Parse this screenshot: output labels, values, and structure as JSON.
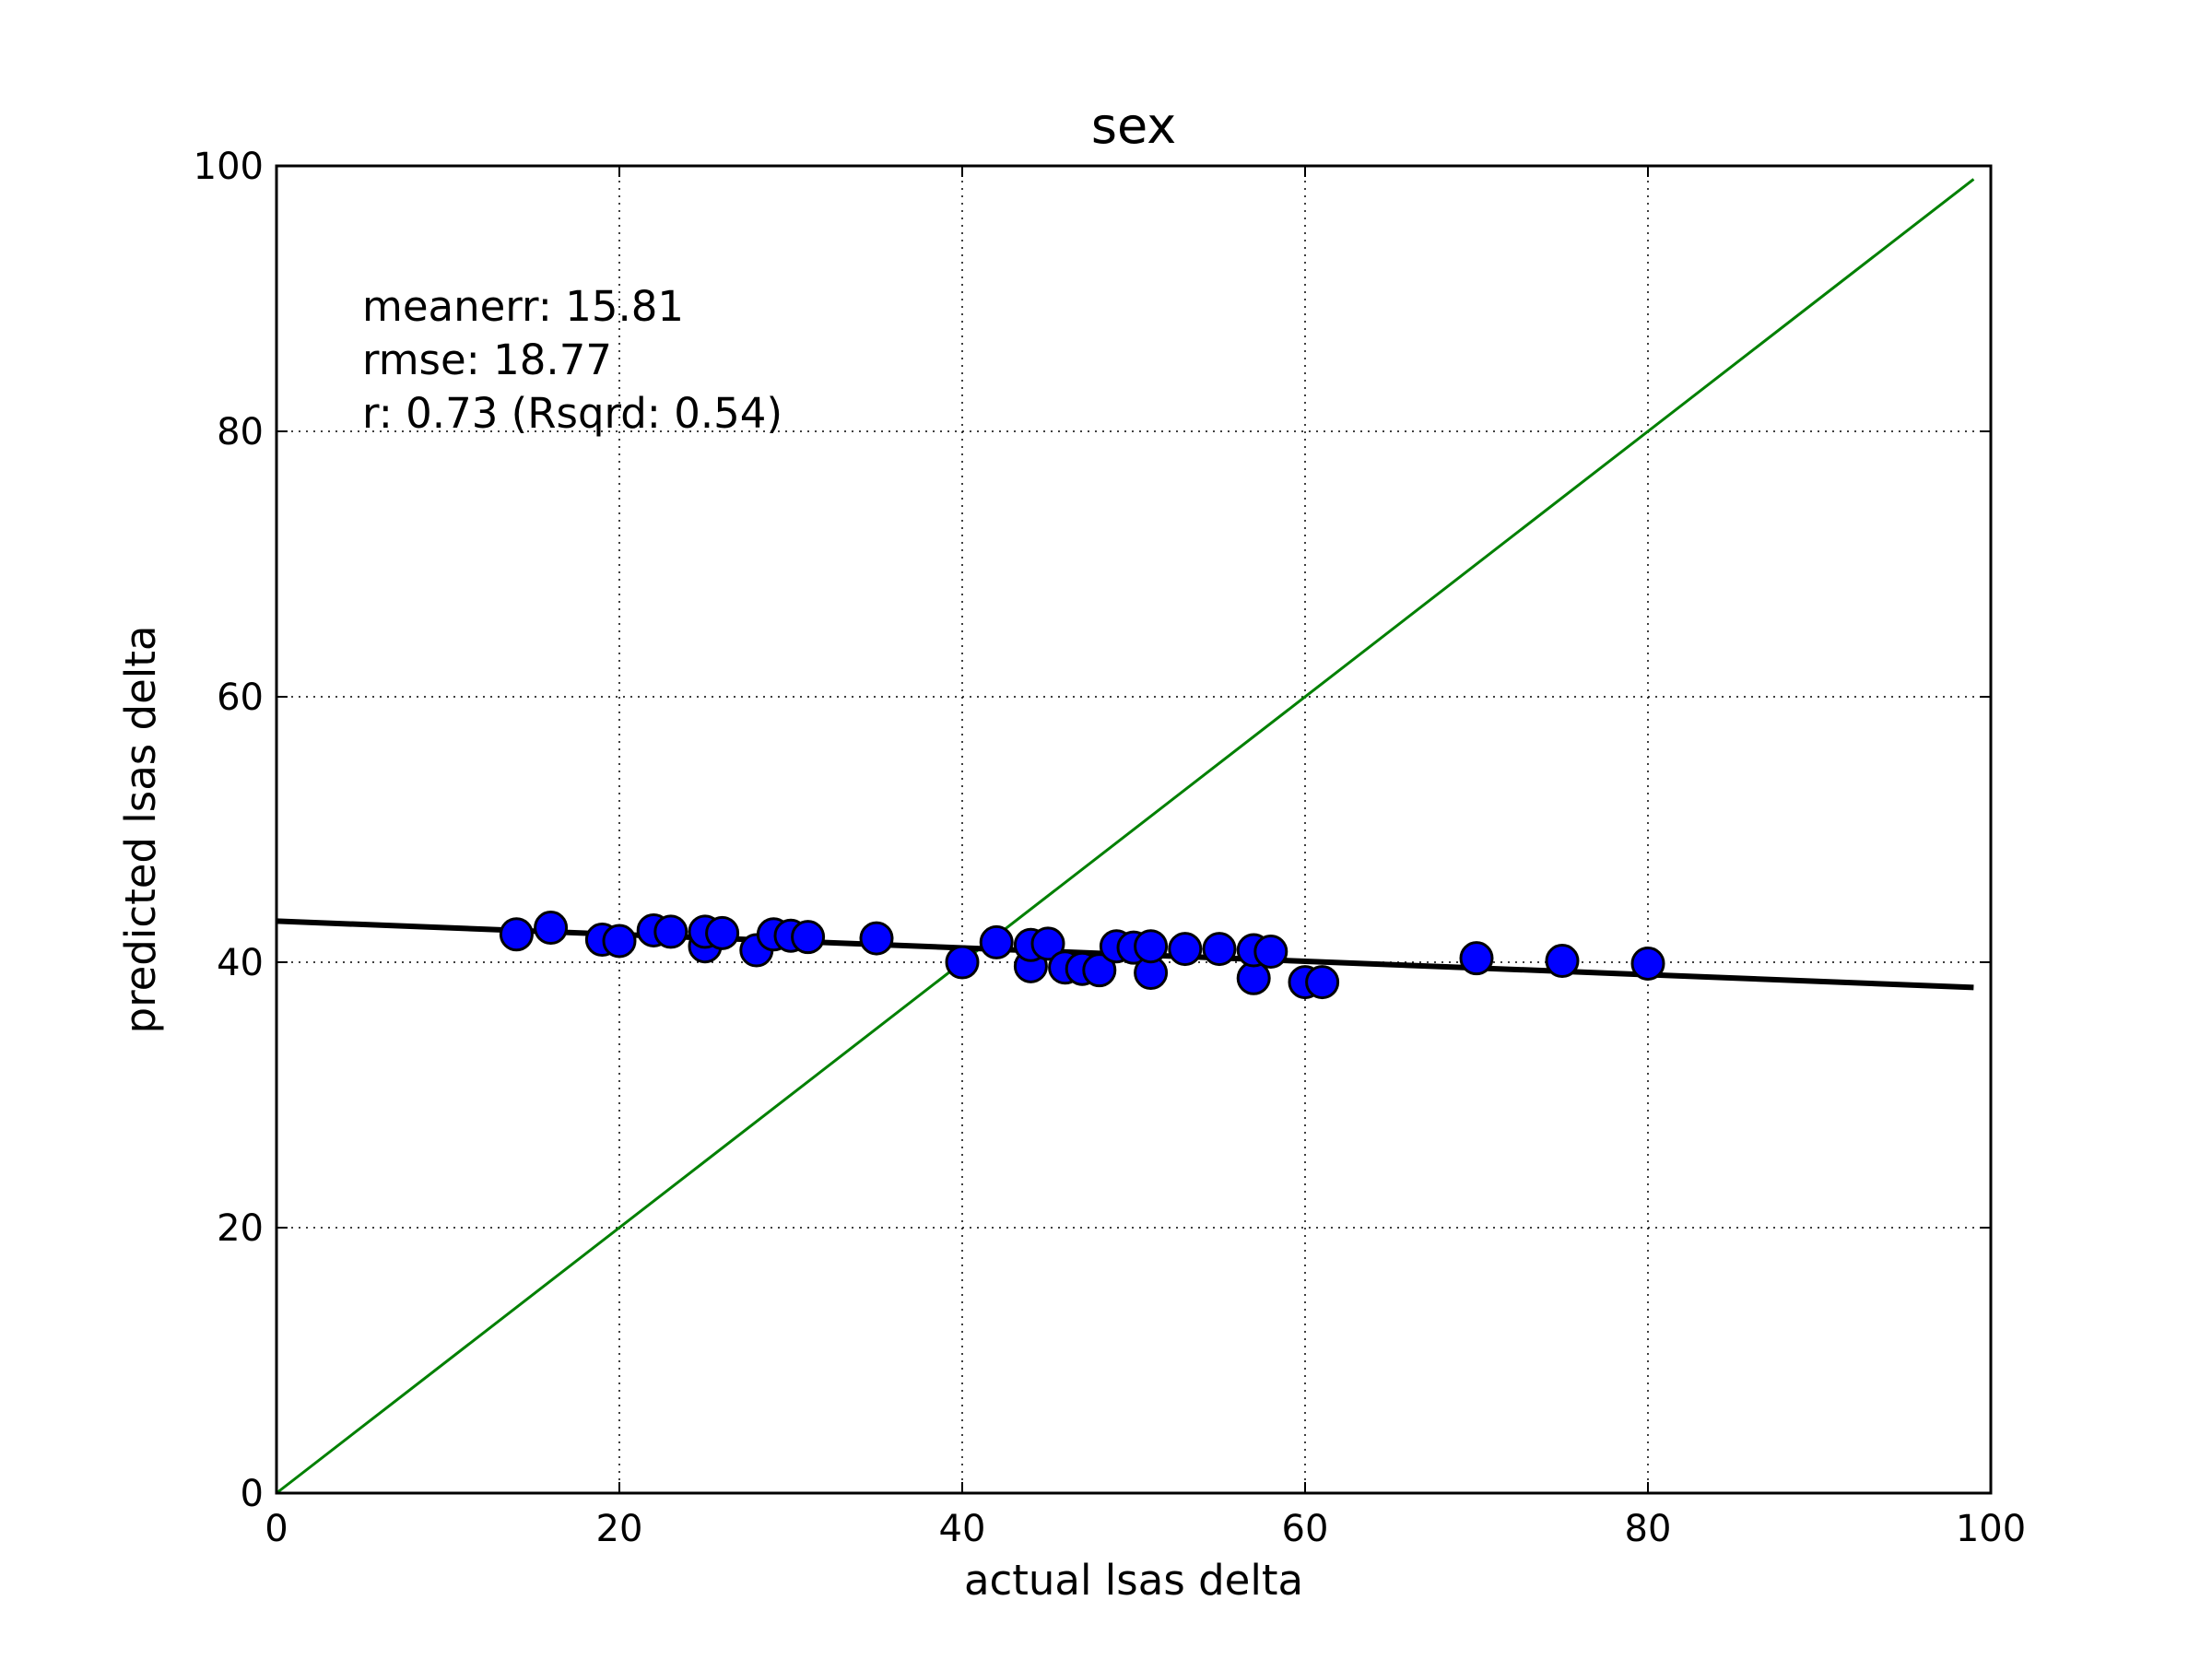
{
  "chart_data": {
    "type": "scatter",
    "title": "sex",
    "xlabel": "actual lsas delta",
    "ylabel": "predicted lsas delta",
    "xlim": [
      0,
      100
    ],
    "ylim": [
      0,
      100
    ],
    "xticks": [
      0,
      20,
      40,
      60,
      80,
      100
    ],
    "yticks": [
      0,
      20,
      40,
      60,
      80,
      100
    ],
    "grid": true,
    "annotations": [
      "meanerr: 15.81",
      "rmse: 18.77",
      "r: 0.73 (Rsqrd: 0.54)"
    ],
    "points": {
      "color": "#0000ff",
      "x": [
        14,
        16,
        19,
        20,
        22,
        23,
        25,
        25,
        26,
        28,
        29,
        30,
        31,
        35,
        40,
        42,
        44,
        44,
        45,
        46,
        47,
        48,
        49,
        50,
        51,
        51,
        53,
        55,
        57,
        57,
        58,
        60,
        61,
        70,
        75,
        80
      ],
      "y": [
        42.1,
        42.6,
        41.7,
        41.6,
        42.4,
        42.3,
        41.2,
        42.3,
        42.2,
        40.9,
        42.1,
        42.0,
        41.9,
        41.8,
        40.0,
        41.5,
        39.7,
        41.3,
        41.4,
        39.6,
        39.5,
        39.4,
        41.2,
        41.1,
        39.2,
        41.2,
        41.0,
        41.0,
        38.8,
        40.9,
        40.8,
        38.5,
        38.5,
        40.3,
        40.1,
        39.9
      ]
    },
    "fit_line": {
      "x": [
        0,
        99
      ],
      "y": [
        43.1,
        38.1
      ],
      "color": "#000000"
    },
    "identity_line": {
      "x": [
        0,
        99
      ],
      "y": [
        0,
        99
      ],
      "color": "#008000"
    }
  }
}
